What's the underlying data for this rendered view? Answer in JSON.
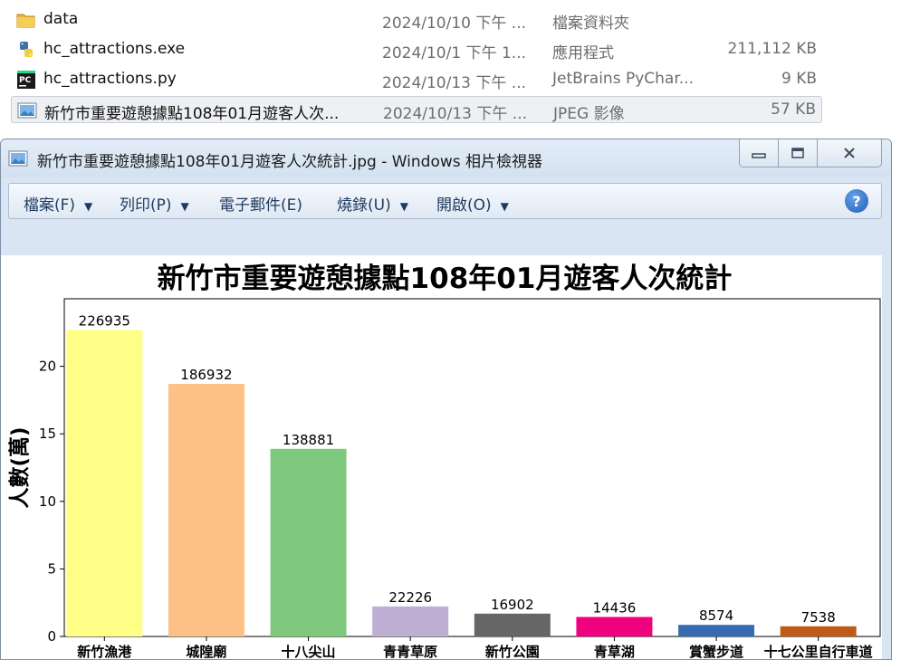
{
  "explorer": {
    "files": [
      {
        "name": "data",
        "date": "2024/10/10 下午 ...",
        "type": "檔案資料夾",
        "size": "",
        "icon": "folder-icon"
      },
      {
        "name": "hc_attractions.exe",
        "date": "2024/10/1 下午 1...",
        "type": "應用程式",
        "size": "211,112 KB",
        "icon": "python-exe-icon"
      },
      {
        "name": "hc_attractions.py",
        "date": "2024/10/13 下午 ...",
        "type": "JetBrains PyChar...",
        "size": "9 KB",
        "icon": "pycharm-icon"
      },
      {
        "name": "新竹市重要遊憩據點108年01月遊客人次...",
        "date": "2024/10/13 下午 ...",
        "type": "JPEG 影像",
        "size": "57 KB",
        "icon": "jpeg-image-icon"
      }
    ]
  },
  "viewer": {
    "title": "新竹市重要遊憩據點108年01月遊客人次統計.jpg - Windows 相片檢視器",
    "buttons": {
      "minimize": "▭",
      "maximize": "▢",
      "close": "✕"
    },
    "menu": [
      {
        "label": "檔案(F)"
      },
      {
        "label": "列印(P)"
      },
      {
        "label": "電子郵件(E)"
      },
      {
        "label": "燒錄(U)"
      },
      {
        "label": "開啟(O)"
      }
    ],
    "help": "?"
  },
  "chart_data": {
    "type": "bar",
    "title": "新竹市重要遊憩據點108年01月遊客人次統計",
    "ylabel": "人數(萬)",
    "xlabel": "",
    "ylim": [
      0,
      25
    ],
    "yticks": [
      0,
      5,
      10,
      15,
      20
    ],
    "categories": [
      "新竹漁港",
      "城隍廟",
      "十八尖山",
      "青青草原",
      "新竹公園",
      "青草湖",
      "賞蟹步道",
      "十七公里自行車道"
    ],
    "values": [
      22.6935,
      18.6932,
      13.8881,
      2.2226,
      1.6902,
      1.4436,
      0.8574,
      0.7538
    ],
    "labels": [
      "226935",
      "186932",
      "138881",
      "22226",
      "16902",
      "14436",
      "8574",
      "7538"
    ],
    "colors": [
      "#ffff88",
      "#fdc085",
      "#7fc97f",
      "#beaed4",
      "#666666",
      "#f0027f",
      "#386cb0",
      "#bf5b17"
    ]
  }
}
